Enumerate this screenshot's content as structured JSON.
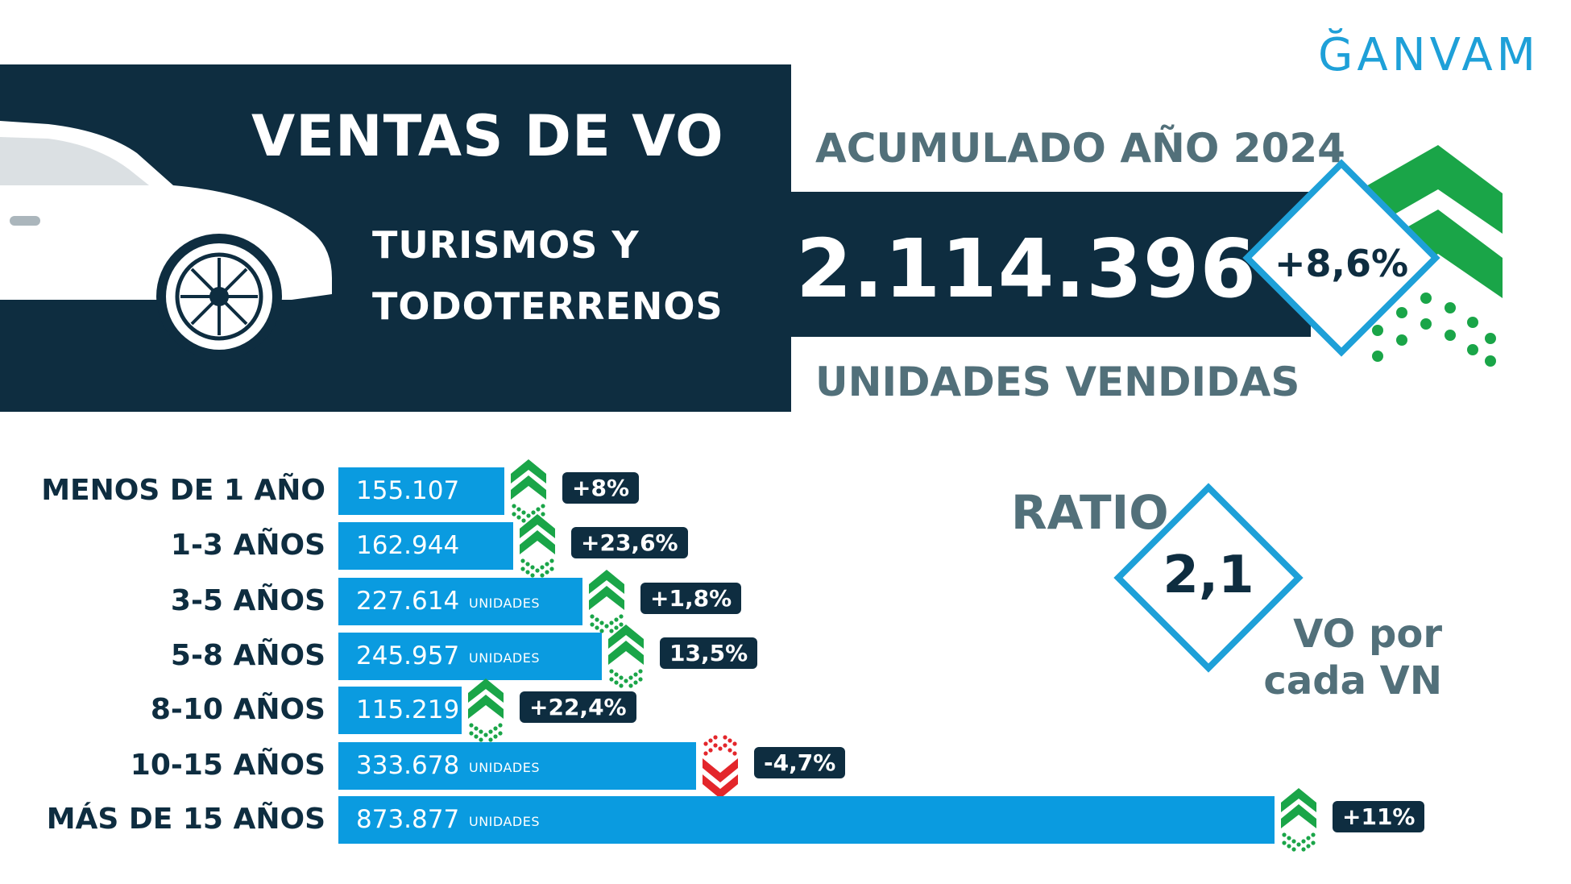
{
  "brand": {
    "logo_text": "ĞANVAM"
  },
  "header": {
    "title": "VENTAS DE VO",
    "subtitle_line1": "TURISMOS Y",
    "subtitle_line2": "TODOTERRENOS",
    "period": "ACUMULADO AÑO 2024",
    "total": "2.114.396",
    "total_label": "UNIDADES VENDIDAS",
    "total_growth": "+8,6%"
  },
  "ratio": {
    "label": "RATIO",
    "value": "2,1",
    "caption_line1": "VO por",
    "caption_line2": "cada VN"
  },
  "colors": {
    "dark_navy": "#0e2d40",
    "bar_blue": "#0a9be0",
    "up_green": "#1aa548",
    "down_red": "#e3262b",
    "grey_text": "#52707a",
    "diamond_border": "#1ea0d8"
  },
  "chart_data": {
    "type": "bar",
    "orientation": "horizontal",
    "unit_label": "UNIDADES",
    "categories": [
      "MENOS DE 1 AÑO",
      "1-3 AÑOS",
      "3-5 AÑOS",
      "5-8 AÑOS",
      "8-10 AÑOS",
      "10-15 AÑOS",
      "MÁS DE 15 AÑOS"
    ],
    "values": [
      155107,
      162944,
      227614,
      245957,
      115219,
      333678,
      873877
    ],
    "value_labels": [
      "155.107",
      "162.944",
      "227.614",
      "245.957",
      "115.219",
      "333.678",
      "873.877"
    ],
    "show_unit": [
      false,
      false,
      true,
      true,
      false,
      true,
      true
    ],
    "changes": [
      "+8%",
      "+23,6%",
      "+1,8%",
      "13,5%",
      "+22,4%",
      "-4,7%",
      "+11%"
    ],
    "trend": [
      "up",
      "up",
      "up",
      "up",
      "up",
      "down",
      "up"
    ]
  }
}
